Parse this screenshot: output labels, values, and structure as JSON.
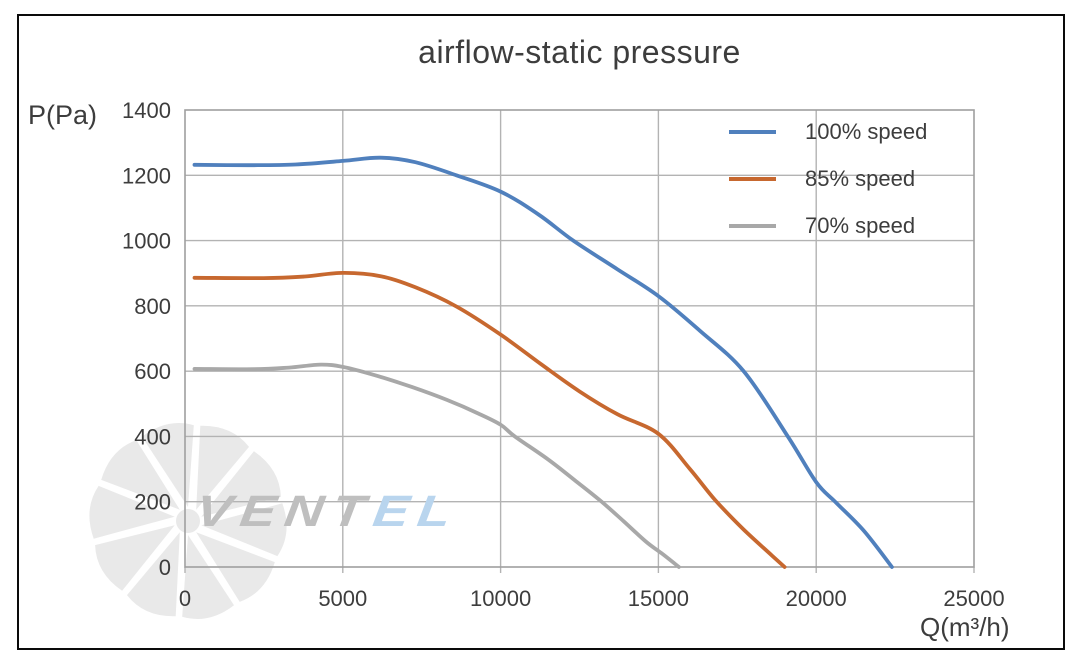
{
  "window": {
    "background": "#ffffff",
    "frame_color": "#0a0a0a"
  },
  "chart_data": {
    "type": "line",
    "title": "airflow-static pressure",
    "xlabel": "Q(m³/h)",
    "ylabel": "P(Pa)",
    "xlim": [
      0,
      25000
    ],
    "ylim": [
      0,
      1400
    ],
    "x_ticks": [
      0,
      5000,
      10000,
      15000,
      20000,
      25000
    ],
    "y_ticks": [
      0,
      200,
      400,
      600,
      800,
      1000,
      1200,
      1400
    ],
    "grid": true,
    "grid_color": "#b3b3b3",
    "border_color": "#9f9f9f",
    "text_color": "#3d3d3d",
    "legend_position": "top-right-inside",
    "series": [
      {
        "name": "100% speed",
        "color": "#5080bd",
        "points": [
          [
            300,
            1232
          ],
          [
            2000,
            1231
          ],
          [
            3500,
            1233
          ],
          [
            5000,
            1244
          ],
          [
            6200,
            1254
          ],
          [
            7300,
            1240
          ],
          [
            8600,
            1200
          ],
          [
            10000,
            1150
          ],
          [
            11200,
            1080
          ],
          [
            12300,
            1000
          ],
          [
            13700,
            912
          ],
          [
            15000,
            830
          ],
          [
            16300,
            725
          ],
          [
            17700,
            600
          ],
          [
            19100,
            400
          ],
          [
            20000,
            260
          ],
          [
            20600,
            200
          ],
          [
            21500,
            112
          ],
          [
            22400,
            0
          ]
        ]
      },
      {
        "name": "85% speed",
        "color": "#c7682f",
        "points": [
          [
            300,
            886
          ],
          [
            2500,
            885
          ],
          [
            3800,
            890
          ],
          [
            5000,
            901
          ],
          [
            6200,
            891
          ],
          [
            7300,
            857
          ],
          [
            8600,
            798
          ],
          [
            10000,
            712
          ],
          [
            11300,
            620
          ],
          [
            12500,
            538
          ],
          [
            13700,
            468
          ],
          [
            15000,
            408
          ],
          [
            16000,
            300
          ],
          [
            16800,
            205
          ],
          [
            17700,
            115
          ],
          [
            18600,
            35
          ],
          [
            19000,
            0
          ]
        ]
      },
      {
        "name": "70% speed",
        "color": "#a8a8a8",
        "points": [
          [
            300,
            607
          ],
          [
            2200,
            606
          ],
          [
            3300,
            611
          ],
          [
            4300,
            620
          ],
          [
            5000,
            613
          ],
          [
            6000,
            588
          ],
          [
            7200,
            551
          ],
          [
            8300,
            512
          ],
          [
            9300,
            470
          ],
          [
            10000,
            436
          ],
          [
            10450,
            400
          ],
          [
            11500,
            330
          ],
          [
            12400,
            262
          ],
          [
            13200,
            200
          ],
          [
            13900,
            140
          ],
          [
            14600,
            78
          ],
          [
            15100,
            42
          ],
          [
            15650,
            0
          ]
        ]
      }
    ]
  },
  "watermark": {
    "logo_shape": "fan-impeller",
    "logo_color": "#e9e9e9",
    "brand_text_gray": "VENT",
    "brand_text_blue": "EL",
    "gray_color": "#bfbfbf",
    "blue_color": "#b9d5ee"
  }
}
